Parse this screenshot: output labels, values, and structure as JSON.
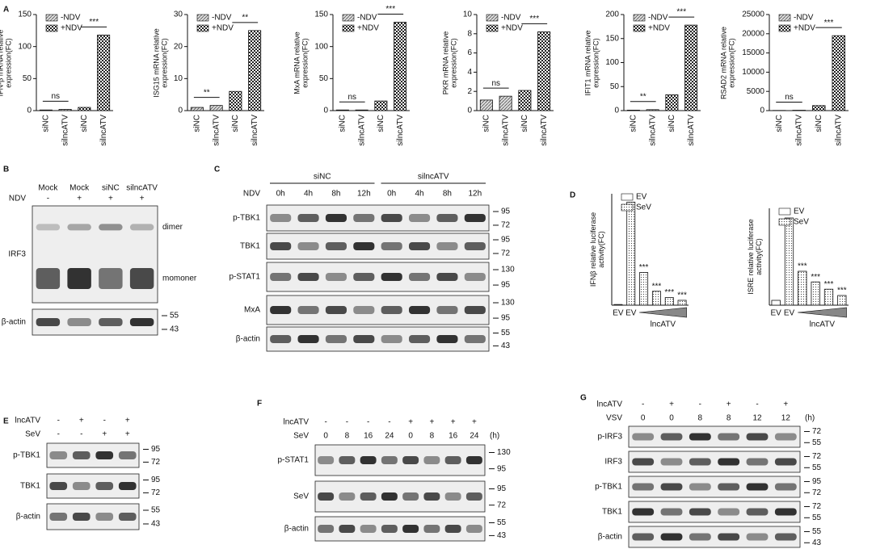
{
  "letters": [
    "A",
    "B",
    "C",
    "D",
    "E",
    "F",
    "G"
  ],
  "chart_data": [
    {
      "type": "bar",
      "y_label": "IFN-β mRNA relative expression(FC)",
      "categories": [
        "siNC",
        "silncATV",
        "siNC",
        "silncATV"
      ],
      "series": [
        {
          "name": "-NDV",
          "pattern": "hatch",
          "values": [
            1,
            2,
            null,
            null
          ]
        },
        {
          "name": "+NDV",
          "pattern": "checker",
          "values": [
            null,
            null,
            5,
            118
          ]
        }
      ],
      "ylim": [
        0,
        150
      ],
      "yticks": [
        0,
        50,
        100,
        150
      ],
      "annotations": [
        "ns",
        "***"
      ]
    },
    {
      "type": "bar",
      "y_label": "ISG15 mRNA relative expression(FC)",
      "categories": [
        "siNC",
        "silncATV",
        "siNC",
        "silncATV"
      ],
      "series": [
        {
          "name": "-NDV",
          "pattern": "hatch",
          "values": [
            1,
            1.6,
            null,
            null
          ]
        },
        {
          "name": "+NDV",
          "pattern": "checker",
          "values": [
            null,
            null,
            6,
            25
          ]
        }
      ],
      "ylim": [
        0,
        30
      ],
      "yticks": [
        0,
        10,
        20,
        30
      ],
      "annotations": [
        "**",
        "**"
      ]
    },
    {
      "type": "bar",
      "y_label": "MxA mRNA relative expression(FC)",
      "categories": [
        "siNC",
        "silncATV",
        "siNC",
        "silncATV"
      ],
      "series": [
        {
          "name": "-NDV",
          "pattern": "hatch",
          "values": [
            1,
            1,
            null,
            null
          ]
        },
        {
          "name": "+NDV",
          "pattern": "checker",
          "values": [
            null,
            null,
            15,
            138
          ]
        }
      ],
      "ylim": [
        0,
        150
      ],
      "yticks": [
        0,
        50,
        100,
        150
      ],
      "annotations": [
        "ns",
        "***"
      ]
    },
    {
      "type": "bar",
      "y_label": "PKR mRNA relative expression(FC)",
      "categories": [
        "siNC",
        "silncATV",
        "siNC",
        "silncATV"
      ],
      "series": [
        {
          "name": "-NDV",
          "pattern": "hatch",
          "values": [
            1.1,
            1.5,
            null,
            null
          ]
        },
        {
          "name": "+NDV",
          "pattern": "checker",
          "values": [
            null,
            null,
            2.1,
            8.2
          ]
        }
      ],
      "ylim": [
        0,
        10
      ],
      "yticks": [
        0,
        2,
        4,
        6,
        8,
        10
      ],
      "annotations": [
        "ns",
        "***"
      ]
    },
    {
      "type": "bar",
      "y_label": "IFIT1 mRNA relative expression(FC)",
      "categories": [
        "siNC",
        "silncATV",
        "siNC",
        "silncATV"
      ],
      "series": [
        {
          "name": "-NDV",
          "pattern": "hatch",
          "values": [
            1,
            2,
            null,
            null
          ]
        },
        {
          "name": "+NDV",
          "pattern": "checker",
          "values": [
            null,
            null,
            33,
            178
          ]
        }
      ],
      "ylim": [
        0,
        200
      ],
      "yticks": [
        0,
        50,
        100,
        150,
        200
      ],
      "annotations": [
        "**",
        "***"
      ]
    },
    {
      "type": "bar",
      "y_label": "RSAD2 mRNA relative expression(FC)",
      "categories": [
        "siNC",
        "silncATV",
        "siNC",
        "silncATV"
      ],
      "series": [
        {
          "name": "-NDV",
          "pattern": "hatch",
          "values": [
            50,
            100,
            null,
            null
          ]
        },
        {
          "name": "+NDV",
          "pattern": "checker",
          "values": [
            null,
            null,
            1300,
            19500
          ]
        }
      ],
      "ylim": [
        0,
        25000
      ],
      "yticks": [
        0,
        5000,
        10000,
        15000,
        20000,
        25000
      ],
      "annotations": [
        "ns",
        "***"
      ]
    },
    {
      "type": "bar",
      "y_label": "IFNβ relative luciferase activity(FC)",
      "x_label": "lncATV",
      "categories": [
        "EV",
        "EV",
        null,
        null,
        null,
        null
      ],
      "series": [
        {
          "name": "EV",
          "pattern": "white",
          "values": [
            1,
            null,
            null,
            null,
            null,
            null
          ]
        },
        {
          "name": "SeV",
          "pattern": "dots",
          "values": [
            null,
            148,
            47,
            20,
            11,
            7
          ]
        }
      ],
      "ylim": [
        0,
        160
      ],
      "annotations": [
        "***",
        "***",
        "***",
        "***"
      ]
    },
    {
      "type": "bar",
      "y_label": "ISRE relative luciferase activity(FC)",
      "x_label": "lncATV",
      "categories": [
        "EV",
        "EV",
        null,
        null,
        null,
        null
      ],
      "series": [
        {
          "name": "EV",
          "pattern": "white",
          "values": [
            1,
            null,
            null,
            null,
            null,
            null
          ]
        },
        {
          "name": "SeV",
          "pattern": "dots",
          "values": [
            null,
            18,
            7,
            4.8,
            3.3,
            2
          ]
        }
      ],
      "ylim": [
        0,
        20
      ],
      "annotations": [
        "***",
        "***",
        "***",
        "***"
      ]
    }
  ],
  "blots": [
    {
      "headers": [
        {
          "cells": [
            "Mock",
            "Mock",
            "siNC",
            "silncATV"
          ]
        },
        {
          "label": "NDV",
          "cells": [
            "-",
            "+",
            "+",
            "+"
          ]
        }
      ],
      "rows": [
        {
          "label": "IRF3",
          "notes": [
            "dimer",
            "momoner"
          ]
        },
        {
          "label": "β-actin",
          "markers": [
            55,
            43
          ]
        }
      ]
    },
    {
      "groups": [
        "siNC",
        "silncATV"
      ],
      "headers": [
        {
          "label": "NDV",
          "cells": [
            "0h",
            "4h",
            "8h",
            "12h",
            "0h",
            "4h",
            "8h",
            "12h"
          ]
        }
      ],
      "rows": [
        {
          "label": "p-TBK1",
          "markers": [
            95,
            72
          ]
        },
        {
          "label": "TBK1",
          "markers": [
            95,
            72
          ]
        },
        {
          "label": "p-STAT1",
          "markers": [
            130,
            95
          ]
        },
        {
          "label": "MxA",
          "markers": [
            130,
            95
          ]
        },
        {
          "label": "β-actin",
          "markers": [
            55,
            43
          ]
        }
      ]
    },
    {
      "headers": [
        {
          "label": "lncATV",
          "cells": [
            "-",
            "+",
            "-",
            "+"
          ]
        },
        {
          "label": "SeV",
          "cells": [
            "-",
            "-",
            "+",
            "+"
          ]
        }
      ],
      "rows": [
        {
          "label": "p-TBK1",
          "markers": [
            95,
            72
          ]
        },
        {
          "label": "TBK1",
          "markers": [
            95,
            72
          ]
        },
        {
          "label": "β-actin",
          "markers": [
            55,
            43
          ]
        }
      ]
    },
    {
      "unit": "(h)",
      "headers": [
        {
          "label": "lncATV",
          "cells": [
            "-",
            "-",
            "-",
            "-",
            "+",
            "+",
            "+",
            "+"
          ]
        },
        {
          "label": "SeV",
          "cells": [
            0,
            8,
            16,
            24,
            0,
            8,
            16,
            24
          ]
        }
      ],
      "rows": [
        {
          "label": "p-STAT1",
          "markers": [
            130,
            95
          ]
        },
        {
          "label": "SeV",
          "markers": [
            95,
            72
          ]
        },
        {
          "label": "β-actin",
          "markers": [
            55,
            43
          ]
        }
      ]
    },
    {
      "unit": "(h)",
      "headers": [
        {
          "label": "lncATV",
          "cells": [
            "-",
            "+",
            "-",
            "+",
            "-",
            "+"
          ]
        },
        {
          "label": "VSV",
          "cells": [
            0,
            0,
            8,
            8,
            12,
            12
          ]
        }
      ],
      "rows": [
        {
          "label": "p-IRF3",
          "markers": [
            72,
            55
          ]
        },
        {
          "label": "IRF3",
          "markers": [
            72,
            55
          ]
        },
        {
          "label": "p-TBK1",
          "markers": [
            95,
            72
          ]
        },
        {
          "label": "TBK1",
          "markers": [
            72,
            55
          ]
        },
        {
          "label": "β-actin",
          "markers": [
            55,
            43
          ]
        }
      ]
    }
  ]
}
